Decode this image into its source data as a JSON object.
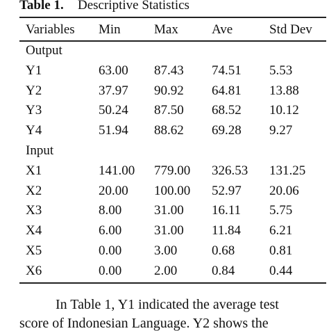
{
  "title": {
    "label": "Table 1.",
    "text": "Descriptive Statistics"
  },
  "table": {
    "header": [
      "Variables",
      "Min",
      "Max",
      "Ave",
      "Std Dev"
    ],
    "groups": [
      {
        "label": "Output",
        "rows": [
          [
            "Y1",
            "63.00",
            "87.43",
            "74.51",
            "5.53"
          ],
          [
            "Y2",
            "37.97",
            "90.92",
            "64.81",
            "13.88"
          ],
          [
            "Y3",
            "50.24",
            "87.50",
            "68.52",
            "10.12"
          ],
          [
            "Y4",
            "51.94",
            "88.62",
            "69.28",
            "9.27"
          ]
        ]
      },
      {
        "label": "Input",
        "rows": [
          [
            "X1",
            "141.00",
            "779.00",
            "326.53",
            "131.25"
          ],
          [
            "X2",
            "20.00",
            "100.00",
            "52.97",
            "20.06"
          ],
          [
            "X3",
            "8.00",
            "31.00",
            "16.11",
            "5.75"
          ],
          [
            "X4",
            "6.00",
            "31.00",
            "11.84",
            "6.21"
          ],
          [
            "X5",
            "0.00",
            "3.00",
            "0.68",
            "0.81"
          ],
          [
            "X6",
            "0.00",
            "2.00",
            "0.84",
            "0.44"
          ]
        ]
      }
    ]
  },
  "paragraph": {
    "lines": [
      "In Table 1, Y1 indicated the average test",
      "score of Indonesian Language. Y2 shows the"
    ]
  }
}
